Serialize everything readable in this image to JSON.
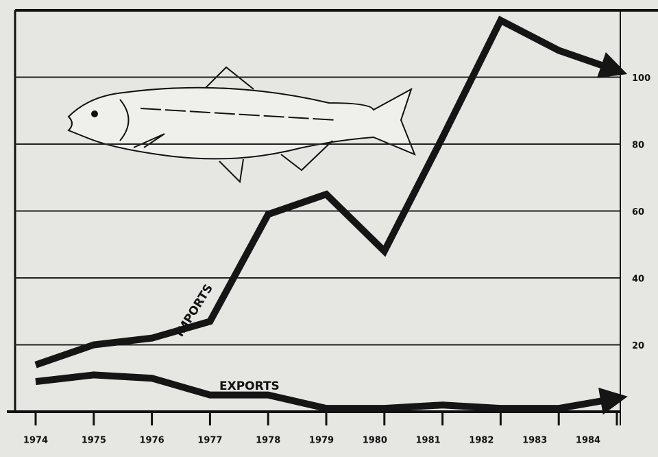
{
  "chart_data": {
    "type": "line",
    "categories": [
      "1974",
      "1975",
      "1976",
      "1977",
      "1978",
      "1979",
      "1980",
      "1981",
      "1982",
      "1983",
      "1984"
    ],
    "series": [
      {
        "name": "IMPORTS",
        "color": "#151515",
        "values": [
          14,
          20,
          22,
          27,
          59,
          65,
          48,
          82,
          117,
          108,
          102
        ]
      },
      {
        "name": "EXPORTS",
        "color": "#151515",
        "values": [
          9,
          11,
          10,
          5,
          5,
          1,
          1,
          2,
          1,
          1,
          4
        ]
      }
    ],
    "ylim": [
      0,
      120
    ],
    "yticks": [
      20,
      40,
      60,
      80,
      100
    ],
    "grid": true
  }
}
